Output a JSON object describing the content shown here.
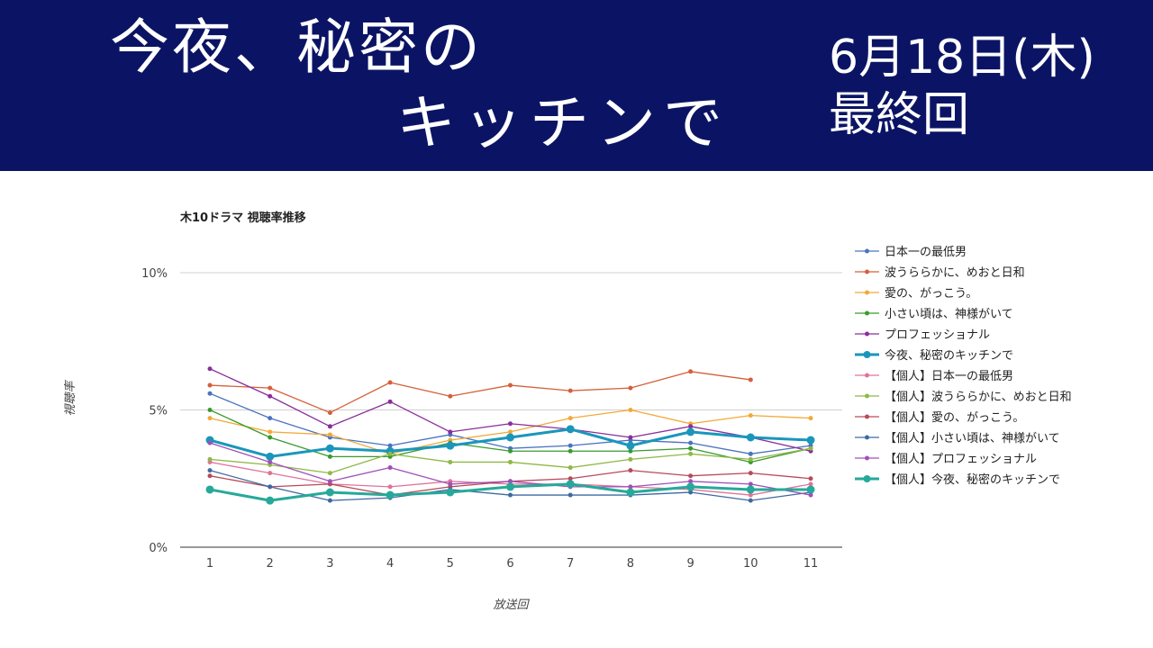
{
  "banner": {
    "title_line1": "今夜、秘密の",
    "title_line2": "キッチンで",
    "date": "6月18日(木)",
    "final": "最終回",
    "background": "#0b1464"
  },
  "chart_data": {
    "type": "line",
    "title": "木10ドラマ 視聴率推移",
    "xlabel": "放送回",
    "ylabel": "視聴率",
    "categories": [
      "1",
      "2",
      "3",
      "4",
      "5",
      "6",
      "7",
      "8",
      "9",
      "10",
      "11"
    ],
    "ylim": [
      0,
      10
    ],
    "yticks": [
      {
        "value": 0,
        "label": "0%"
      },
      {
        "value": 5,
        "label": "5%"
      },
      {
        "value": 10,
        "label": "10%"
      }
    ],
    "grid": true,
    "legend_position": "right",
    "series": [
      {
        "name": "日本一の最低男",
        "color": "#4a73c0",
        "values": [
          5.6,
          4.7,
          4.0,
          3.7,
          4.1,
          3.6,
          3.7,
          3.9,
          3.8,
          3.4,
          3.7
        ]
      },
      {
        "name": "波うららかに、めおと日和",
        "color": "#d4603c",
        "values": [
          5.9,
          5.8,
          4.9,
          6.0,
          5.5,
          5.9,
          5.7,
          5.8,
          6.4,
          6.1,
          null
        ]
      },
      {
        "name": "愛の、がっこう。",
        "color": "#f2a938",
        "values": [
          4.7,
          4.2,
          4.1,
          3.4,
          3.9,
          4.2,
          4.7,
          5.0,
          4.5,
          4.8,
          4.7
        ]
      },
      {
        "name": "小さい頃は、神様がいて",
        "color": "#3a9a2e",
        "values": [
          5.0,
          4.0,
          3.3,
          3.3,
          3.8,
          3.5,
          3.5,
          3.5,
          3.6,
          3.1,
          3.6
        ]
      },
      {
        "name": "プロフェッショナル",
        "color": "#8a2e9a",
        "values": [
          6.5,
          5.5,
          4.4,
          5.3,
          4.2,
          4.5,
          4.3,
          4.0,
          4.4,
          4.0,
          3.5
        ]
      },
      {
        "name": "今夜、秘密のキッチンで",
        "color": "#1a96bb",
        "bold": true,
        "values": [
          3.9,
          3.3,
          3.6,
          3.5,
          3.7,
          4.0,
          4.3,
          3.7,
          4.2,
          4.0,
          3.9
        ]
      },
      {
        "name": "【個人】日本一の最低男",
        "color": "#e0739a",
        "values": [
          3.1,
          2.7,
          2.3,
          2.2,
          2.4,
          2.3,
          2.3,
          2.2,
          2.1,
          1.9,
          2.3
        ]
      },
      {
        "name": "【個人】波うららかに、めおと日和",
        "color": "#8fb846",
        "values": [
          3.2,
          3.0,
          2.7,
          3.4,
          3.1,
          3.1,
          2.9,
          3.2,
          3.4,
          3.2,
          3.6
        ]
      },
      {
        "name": "【個人】愛の、がっこう。",
        "color": "#b84a5a",
        "values": [
          2.6,
          2.2,
          2.3,
          1.9,
          2.2,
          2.4,
          2.5,
          2.8,
          2.6,
          2.7,
          2.5
        ]
      },
      {
        "name": "【個人】小さい頃は、神様がいて",
        "color": "#3e6aa0",
        "values": [
          2.8,
          2.2,
          1.7,
          1.8,
          2.1,
          1.9,
          1.9,
          1.9,
          2.0,
          1.7,
          2.0
        ]
      },
      {
        "name": "【個人】プロフェッショナル",
        "color": "#a050b8",
        "values": [
          3.8,
          3.1,
          2.4,
          2.9,
          2.3,
          2.4,
          2.2,
          2.2,
          2.4,
          2.3,
          1.9
        ]
      },
      {
        "name": "【個人】今夜、秘密のキッチンで",
        "color": "#26a99a",
        "bold": true,
        "values": [
          2.1,
          1.7,
          2.0,
          1.9,
          2.0,
          2.2,
          2.3,
          2.0,
          2.2,
          2.1,
          2.1
        ]
      }
    ]
  }
}
